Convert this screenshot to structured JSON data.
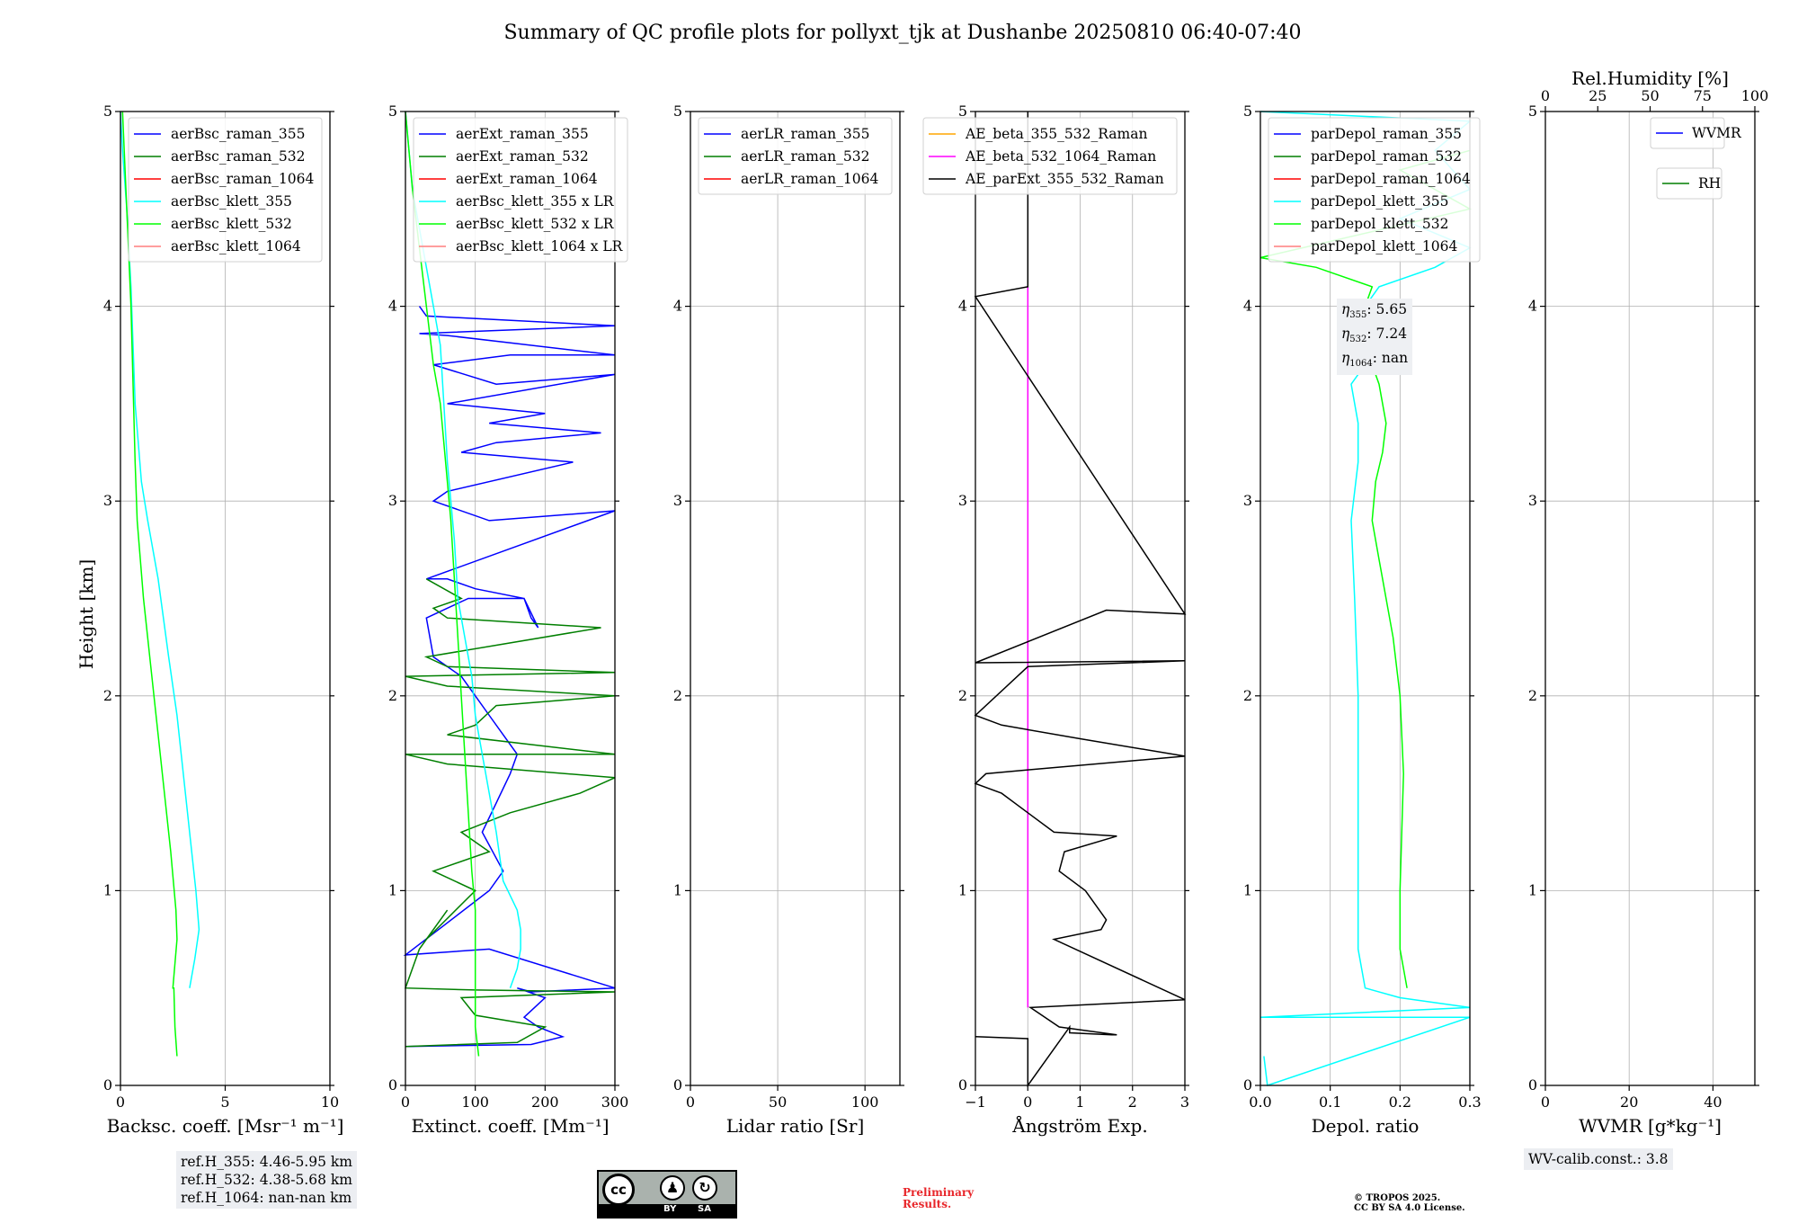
{
  "title": "Summary of QC profile plots for pollyxt_tjk at Dushanbe 20250810 06:40-07:40",
  "y_label": "Height [km]",
  "y_ticks": [
    "0",
    "1",
    "2",
    "3",
    "4",
    "5"
  ],
  "info": {
    "ref_h": [
      "ref.H_355: 4.46-5.95 km",
      "ref.H_532: 4.38-5.68 km",
      "ref.H_1064: nan-nan km"
    ],
    "wv_calib": "WV-calib.const.: 3.8",
    "eta": [
      {
        "sub": "355",
        "val": ": 5.65"
      },
      {
        "sub": "532",
        "val": ": 7.24"
      },
      {
        "sub": "1064",
        "val": ": nan"
      }
    ],
    "eta_symbol": "η"
  },
  "preliminary": [
    "Preliminary",
    "Results."
  ],
  "copyright": [
    "© TROPOS 2025.",
    "CC BY SA 4.0 License."
  ],
  "license_badge": {
    "cc": "cc",
    "by": "BY",
    "sa": "SA"
  },
  "colors": {
    "blue": "#0000ff",
    "green": "#007f00",
    "red": "#ff0000",
    "cyan": "#00ffff",
    "lime": "#00ff00",
    "pink": "#ff7f7f",
    "orange": "#ffa500",
    "magenta": "#ff00ff",
    "black": "#000000"
  },
  "chart_data": [
    {
      "type": "line",
      "panel": "backscatter",
      "xlabel": "Backsc. coeff. [Msr⁻¹ m⁻¹]",
      "xlim": [
        0,
        10
      ],
      "xticks": [
        "0",
        "5",
        "10"
      ],
      "ylabel": "Height [km]",
      "ylim": [
        0,
        5
      ],
      "legend": [
        "aerBsc_raman_355",
        "aerBsc_raman_532",
        "aerBsc_raman_1064",
        "aerBsc_klett_355",
        "aerBsc_klett_532",
        "aerBsc_klett_1064"
      ],
      "legend_colors": [
        "blue",
        "green",
        "red",
        "cyan",
        "lime",
        "pink"
      ],
      "series": [
        {
          "name": "aerBsc_klett_355",
          "color": "cyan",
          "x": [
            3.3,
            3.55,
            3.75,
            3.6,
            3.3,
            3.0,
            2.7,
            2.3,
            1.8,
            1.3,
            1.0,
            0.7,
            0.6,
            0.5,
            0.4,
            0.3,
            0.1,
            0.0
          ],
          "y": [
            0.5,
            0.65,
            0.8,
            1.0,
            1.3,
            1.6,
            1.9,
            2.2,
            2.6,
            2.9,
            3.1,
            3.5,
            3.8,
            4.1,
            4.3,
            4.5,
            4.8,
            5.0
          ]
        },
        {
          "name": "aerBsc_klett_532",
          "color": "lime",
          "x": [
            2.7,
            2.6,
            2.55,
            2.5,
            2.7,
            2.65,
            2.4,
            2.1,
            1.8,
            1.5,
            1.1,
            0.8,
            0.7,
            0.6,
            0.5,
            0.3,
            0.1
          ],
          "y": [
            0.15,
            0.3,
            0.5,
            0.5,
            0.75,
            0.9,
            1.2,
            1.5,
            1.8,
            2.1,
            2.5,
            2.9,
            3.2,
            3.6,
            4.0,
            4.5,
            5.0
          ]
        }
      ]
    },
    {
      "type": "line",
      "panel": "extinction",
      "xlabel": "Extinct. coeff. [Mm⁻¹]",
      "xlim": [
        0,
        300
      ],
      "xticks": [
        "0",
        "100",
        "200",
        "300"
      ],
      "ylim": [
        0,
        5
      ],
      "legend": [
        "aerExt_raman_355",
        "aerExt_raman_532",
        "aerExt_raman_1064",
        "aerBsc_klett_355 x LR",
        "aerBsc_klett_532 x LR",
        "aerBsc_klett_1064 x LR"
      ],
      "legend_colors": [
        "blue",
        "green",
        "red",
        "cyan",
        "lime",
        "pink"
      ],
      "series": [
        {
          "name": "aerExt_raman_355",
          "color": "blue",
          "x": [
            0,
            180,
            225,
            190,
            170,
            200,
            160,
            180,
            300,
            120,
            0,
            120,
            140,
            110,
            130,
            150,
            160,
            140,
            120,
            100,
            80,
            60,
            40,
            30,
            60,
            90,
            170,
            180,
            190,
            170,
            100,
            60,
            30,
            300,
            120,
            40,
            60,
            240,
            80,
            130,
            280,
            120,
            200,
            60,
            300,
            130,
            40,
            150,
            300,
            60,
            20,
            300,
            30,
            20
          ],
          "y": [
            0.2,
            0.21,
            0.25,
            0.3,
            0.35,
            0.45,
            0.5,
            0.48,
            0.5,
            0.7,
            0.67,
            1.0,
            1.1,
            1.3,
            1.45,
            1.6,
            1.7,
            1.8,
            1.9,
            2.0,
            2.1,
            2.15,
            2.2,
            2.4,
            2.45,
            2.5,
            2.5,
            2.4,
            2.35,
            2.5,
            2.55,
            2.6,
            2.6,
            2.95,
            2.9,
            3.0,
            3.05,
            3.2,
            3.25,
            3.3,
            3.35,
            3.4,
            3.45,
            3.5,
            3.65,
            3.6,
            3.7,
            3.75,
            3.75,
            3.85,
            3.86,
            3.9,
            3.95,
            4.0
          ]
        },
        {
          "name": "aerExt_raman_532",
          "color": "green",
          "x": [
            0,
            160,
            200,
            100,
            80,
            300,
            100,
            0,
            20,
            60,
            30,
            100,
            40,
            120,
            80,
            150,
            250,
            300,
            60,
            0,
            300,
            60,
            100,
            130,
            300,
            60,
            0,
            300,
            60,
            30,
            280,
            60,
            40,
            80,
            30
          ],
          "y": [
            0.2,
            0.22,
            0.3,
            0.36,
            0.45,
            0.48,
            0.49,
            0.5,
            0.7,
            0.9,
            0.75,
            1.0,
            1.1,
            1.2,
            1.3,
            1.4,
            1.5,
            1.58,
            1.65,
            1.7,
            1.7,
            1.8,
            1.85,
            1.95,
            2.0,
            2.05,
            2.1,
            2.12,
            2.15,
            2.2,
            2.35,
            2.4,
            2.45,
            2.5,
            2.6
          ]
        },
        {
          "name": "aerBsc_klett_355 x LR",
          "color": "cyan",
          "x": [
            150,
            160,
            165,
            165,
            160,
            140,
            130,
            120,
            110,
            100,
            95,
            85,
            75,
            70,
            65,
            60,
            55,
            50,
            40,
            30,
            20,
            10,
            5,
            0
          ],
          "y": [
            0.5,
            0.6,
            0.7,
            0.8,
            0.9,
            1.05,
            1.3,
            1.5,
            1.7,
            1.9,
            2.1,
            2.3,
            2.5,
            2.8,
            3.0,
            3.2,
            3.5,
            3.8,
            4.0,
            4.2,
            4.4,
            4.6,
            4.8,
            5.0
          ]
        },
        {
          "name": "aerBsc_klett_532 x LR",
          "color": "lime",
          "x": [
            105,
            100,
            100,
            100,
            100,
            95,
            90,
            85,
            80,
            75,
            70,
            65,
            60,
            55,
            50,
            40,
            30,
            20,
            10,
            5,
            0
          ],
          "y": [
            0.15,
            0.3,
            0.5,
            0.65,
            0.9,
            1.1,
            1.4,
            1.7,
            2.0,
            2.3,
            2.6,
            2.9,
            3.1,
            3.3,
            3.5,
            3.7,
            4.0,
            4.3,
            4.6,
            4.8,
            5.0
          ]
        }
      ]
    },
    {
      "type": "line",
      "panel": "lidar_ratio",
      "xlabel": "Lidar ratio [Sr]",
      "xlim": [
        0,
        120
      ],
      "xticks": [
        "0",
        "50",
        "100"
      ],
      "ylim": [
        0,
        5
      ],
      "legend": [
        "aerLR_raman_355",
        "aerLR_raman_532",
        "aerLR_raman_1064"
      ],
      "legend_colors": [
        "blue",
        "green",
        "red"
      ],
      "series": []
    },
    {
      "type": "line",
      "panel": "angstrom",
      "xlabel": "Ångström Exp.",
      "xlim": [
        -1,
        3
      ],
      "xticks": [
        "−1",
        "0",
        "1",
        "2",
        "3"
      ],
      "ylim": [
        0,
        5
      ],
      "legend": [
        "AE_beta_355_532_Raman",
        "AE_beta_532_1064_Raman",
        "AE_parExt_355_532_Raman"
      ],
      "legend_colors": [
        "orange",
        "magenta",
        "black"
      ],
      "series": [
        {
          "name": "AE_beta_532_1064_Raman",
          "color": "magenta",
          "x": [
            0,
            0
          ],
          "y": [
            0.4,
            4.1
          ]
        },
        {
          "name": "AE_parExt_355_532_Raman",
          "color": "black",
          "x": [
            -1,
            0,
            0,
            0.8,
            0.8,
            1.6,
            1.7,
            0.6,
            0.05,
            3.0,
            0.5,
            1.4,
            1.5,
            1.1,
            0.6,
            0.7,
            1.7,
            0.5,
            0.0,
            -0.5,
            -1.0,
            -0.8,
            0.0,
            3.0,
            1.0,
            -0.5,
            -1.0,
            0.0,
            3.0,
            -1.0,
            1.5,
            3.0,
            -1.0,
            0.0,
            0.0
          ],
          "y": [
            0.25,
            0.24,
            0.0,
            0.3,
            0.27,
            0.26,
            0.26,
            0.3,
            0.4,
            0.44,
            0.75,
            0.8,
            0.85,
            1.0,
            1.1,
            1.2,
            1.28,
            1.3,
            1.4,
            1.5,
            1.55,
            1.6,
            1.62,
            1.69,
            1.78,
            1.85,
            1.9,
            2.15,
            2.18,
            2.17,
            2.44,
            2.42,
            4.05,
            4.1,
            5.0
          ]
        }
      ]
    },
    {
      "type": "line",
      "panel": "depolarization",
      "xlabel": "Depol. ratio",
      "xlim": [
        0,
        0.3
      ],
      "xticks": [
        "0.0",
        "0.1",
        "0.2",
        "0.3"
      ],
      "ylim": [
        0,
        5
      ],
      "legend": [
        "parDepol_raman_355",
        "parDepol_raman_532",
        "parDepol_raman_1064",
        "parDepol_klett_355",
        "parDepol_klett_532",
        "parDepol_klett_1064"
      ],
      "legend_colors": [
        "blue",
        "green",
        "red",
        "cyan",
        "lime",
        "pink"
      ],
      "series": [
        {
          "name": "parDepol_klett_355",
          "color": "cyan",
          "x": [
            0.005,
            0.01,
            0.3,
            0.0,
            0.3,
            0.2,
            0.15,
            0.14,
            0.14,
            0.14,
            0.14,
            0.135,
            0.13,
            0.14,
            0.14,
            0.13,
            0.15,
            0.13,
            0.15,
            0.17,
            0.25,
            0.3,
            0.2,
            0.3,
            0.25,
            0.3,
            0.0
          ],
          "y": [
            0.15,
            0.0,
            0.35,
            0.35,
            0.4,
            0.45,
            0.5,
            0.7,
            1.0,
            1.5,
            2.0,
            2.5,
            2.9,
            3.2,
            3.4,
            3.6,
            3.7,
            3.85,
            4.0,
            4.1,
            4.2,
            4.3,
            4.45,
            4.6,
            4.8,
            4.95,
            5.0
          ]
        },
        {
          "name": "parDepol_klett_532",
          "color": "lime",
          "x": [
            0.21,
            0.2,
            0.2,
            0.205,
            0.2,
            0.19,
            0.18,
            0.17,
            0.16,
            0.165,
            0.175,
            0.18,
            0.17,
            0.16,
            0.145,
            0.13,
            0.14,
            0.15,
            0.16,
            0.08,
            0.0,
            0.3,
            0.2,
            0.3
          ],
          "y": [
            0.5,
            0.7,
            1.0,
            1.6,
            2.0,
            2.3,
            2.5,
            2.7,
            2.9,
            3.1,
            3.25,
            3.4,
            3.6,
            3.7,
            3.8,
            3.85,
            3.9,
            4.0,
            4.1,
            4.2,
            4.25,
            4.5,
            4.7,
            4.8
          ]
        }
      ]
    },
    {
      "type": "line",
      "panel": "water_vapor",
      "xlabel": "WVMR [g*kg⁻¹]",
      "xlim": [
        0,
        50
      ],
      "xticks": [
        "0",
        "20",
        "40"
      ],
      "top_xlabel": "Rel.Humidity [%]",
      "top_xlim": [
        0,
        100
      ],
      "top_xticks": [
        "0",
        "25",
        "50",
        "75",
        "100"
      ],
      "ylim": [
        0,
        5
      ],
      "legend": [
        "WVMR",
        "RH"
      ],
      "legend_colors": [
        "blue",
        "green"
      ],
      "series": []
    }
  ]
}
